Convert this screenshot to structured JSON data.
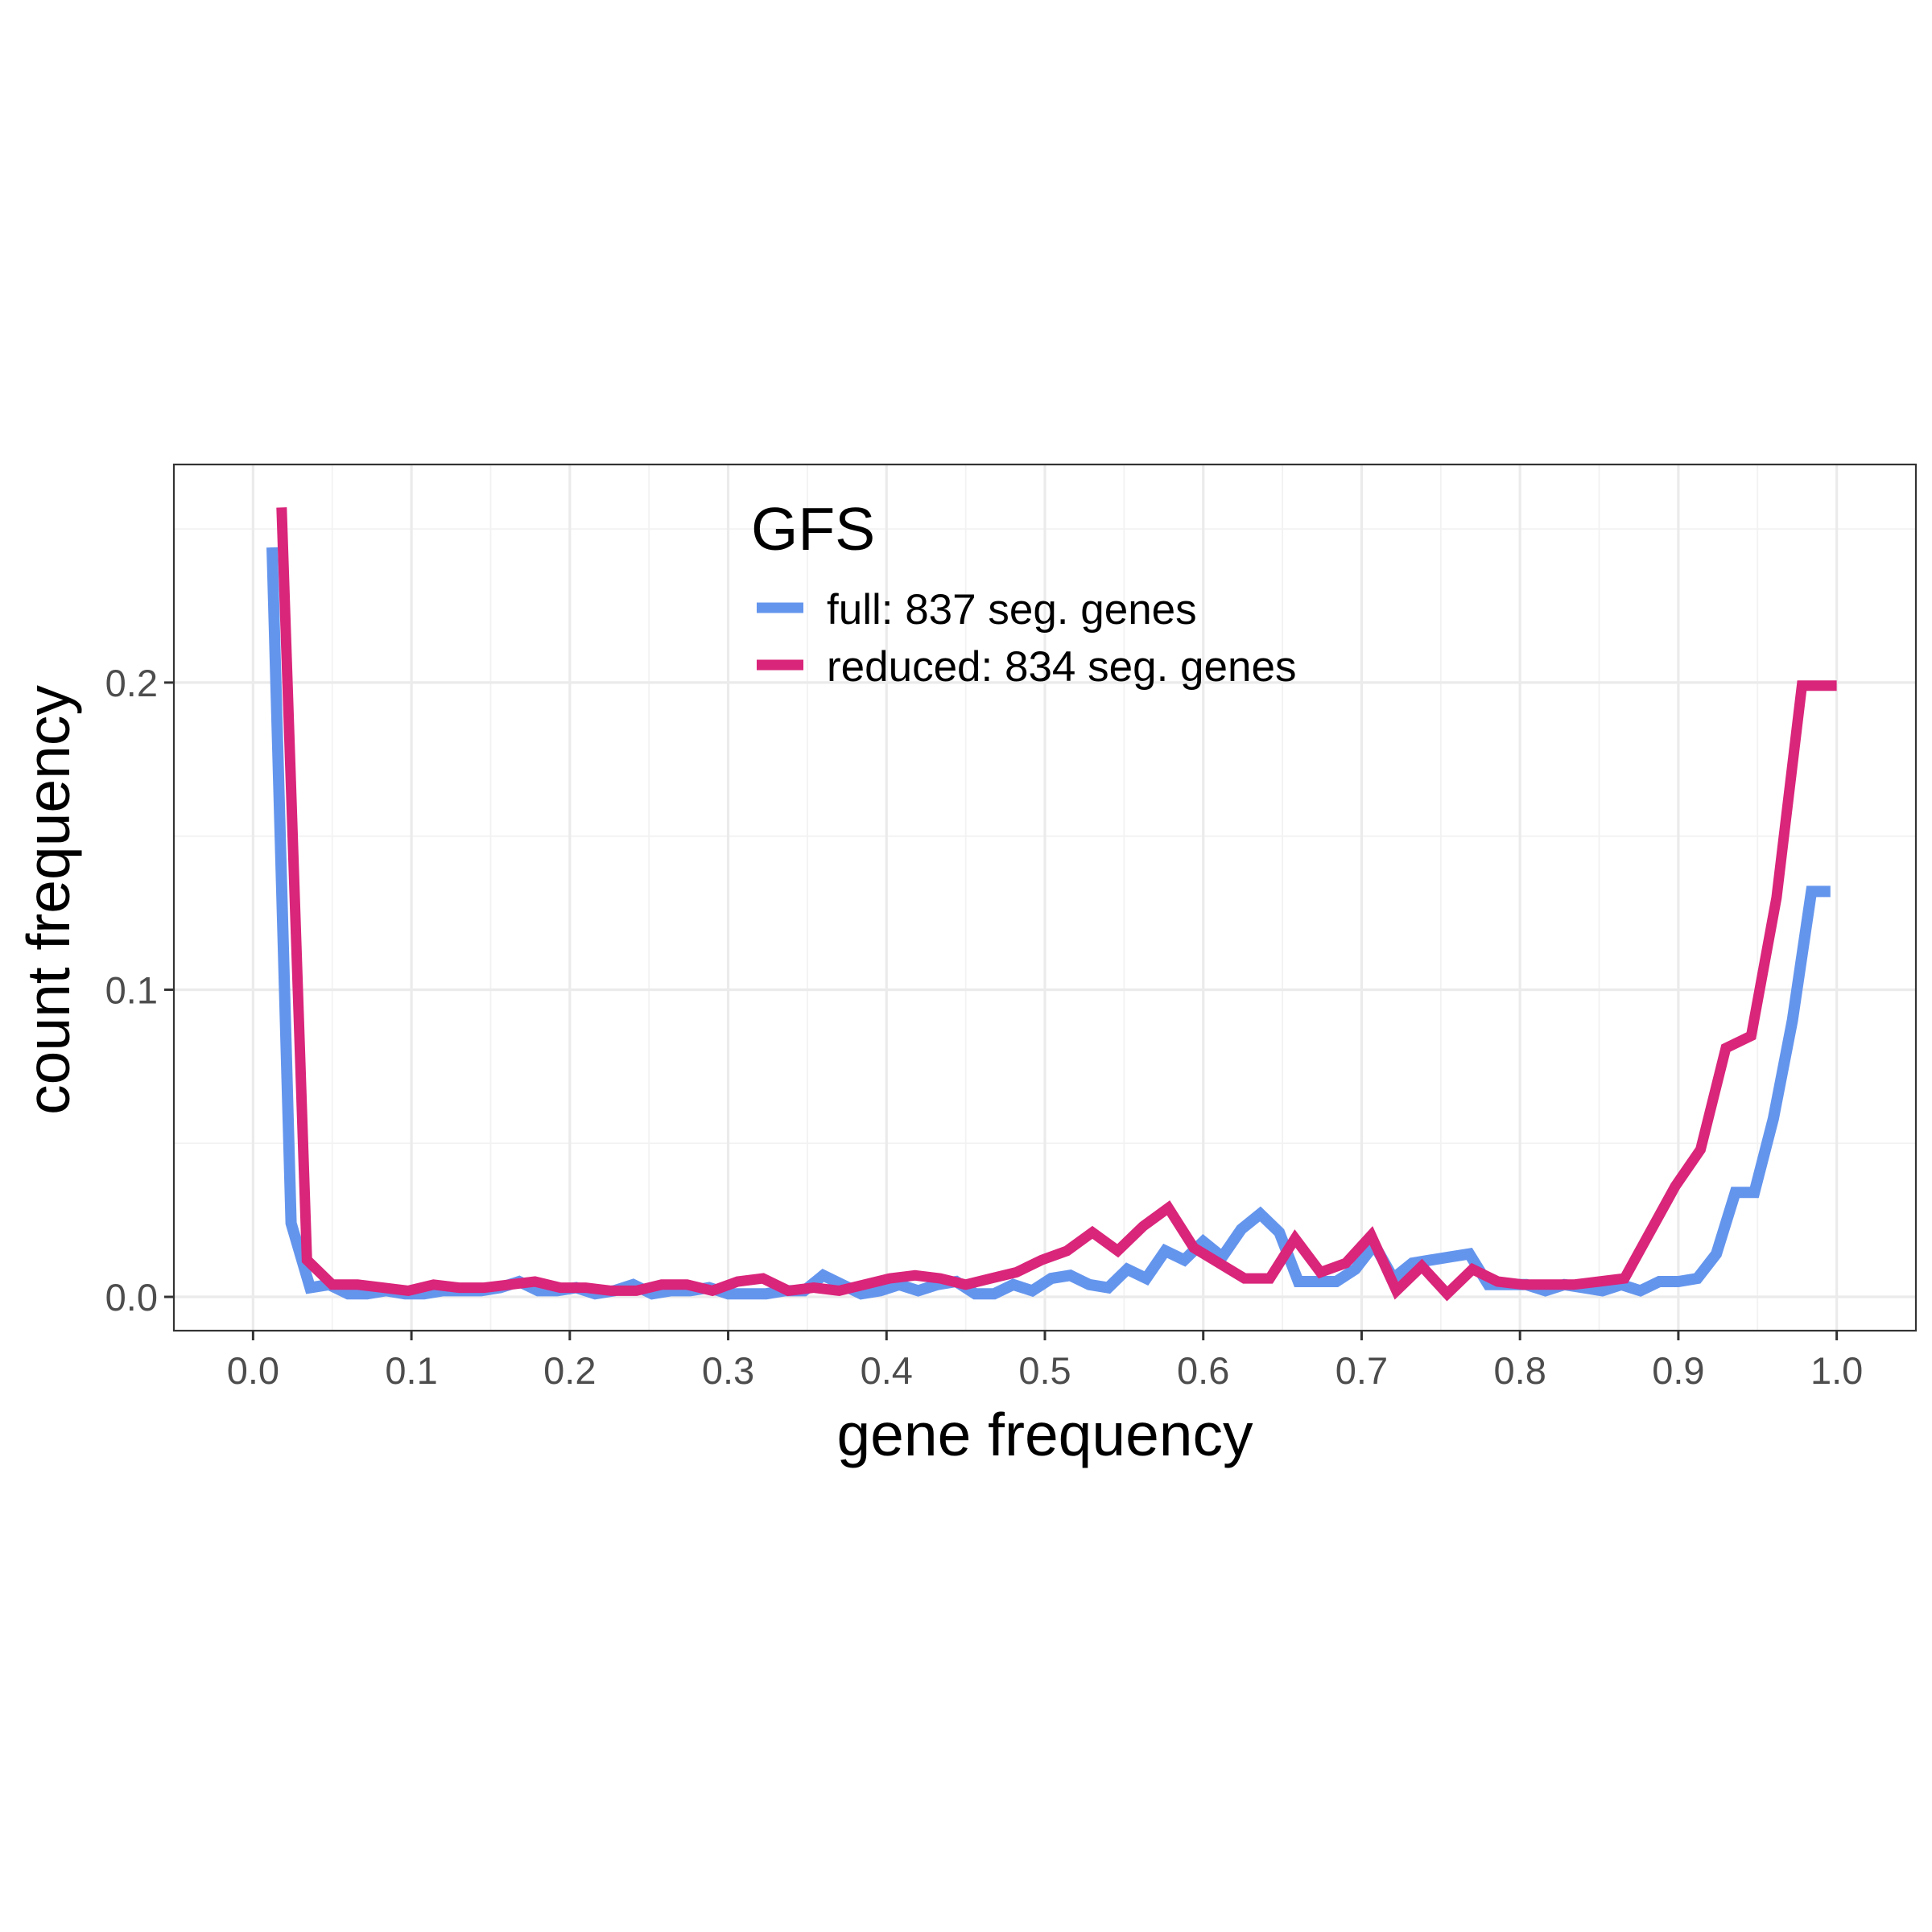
{
  "chart_data": {
    "type": "line",
    "title": "",
    "xlabel": "gene frequency",
    "ylabel": "count frequency",
    "xlim": [
      -0.05,
      1.05
    ],
    "ylim": [
      -0.011,
      0.271
    ],
    "x_ticks": [
      0.0,
      0.1,
      0.2,
      0.3,
      0.4,
      0.5,
      0.6,
      0.7,
      0.8,
      0.9,
      1.0
    ],
    "x_tick_labels": [
      "0.0",
      "0.1",
      "0.2",
      "0.3",
      "0.4",
      "0.5",
      "0.6",
      "0.7",
      "0.8",
      "0.9",
      "1.0"
    ],
    "y_ticks": [
      0.0,
      0.1,
      0.2
    ],
    "y_tick_labels": [
      "0.0",
      "0.1",
      "0.2"
    ],
    "grid": true,
    "legend": {
      "title": "GFS",
      "position": "top-center, inside plot",
      "entries": [
        "full: 837 seg. genes",
        "reduced: 834 seg. genes"
      ]
    },
    "series": [
      {
        "name": "full: 837 seg. genes",
        "color": "#6495ED",
        "x": [
          0.012,
          0.024,
          0.036,
          0.048,
          0.06,
          0.072,
          0.084,
          0.096,
          0.108,
          0.12,
          0.132,
          0.144,
          0.156,
          0.168,
          0.18,
          0.192,
          0.204,
          0.216,
          0.228,
          0.24,
          0.252,
          0.264,
          0.276,
          0.288,
          0.3,
          0.312,
          0.324,
          0.336,
          0.348,
          0.36,
          0.372,
          0.384,
          0.396,
          0.408,
          0.42,
          0.432,
          0.444,
          0.456,
          0.468,
          0.48,
          0.492,
          0.504,
          0.516,
          0.528,
          0.54,
          0.552,
          0.564,
          0.576,
          0.588,
          0.6,
          0.612,
          0.624,
          0.636,
          0.648,
          0.66,
          0.672,
          0.684,
          0.696,
          0.708,
          0.72,
          0.732,
          0.744,
          0.756,
          0.768,
          0.78,
          0.792,
          0.804,
          0.816,
          0.828,
          0.84,
          0.852,
          0.864,
          0.876,
          0.888,
          0.9,
          0.912,
          0.924,
          0.936,
          0.948,
          0.96,
          0.972,
          0.984,
          0.996
        ],
        "values": [
          0.244,
          0.024,
          0.003,
          0.004,
          0.001,
          0.001,
          0.002,
          0.001,
          0.001,
          0.002,
          0.002,
          0.002,
          0.003,
          0.005,
          0.002,
          0.002,
          0.003,
          0.001,
          0.002,
          0.004,
          0.001,
          0.002,
          0.002,
          0.003,
          0.001,
          0.001,
          0.001,
          0.002,
          0.002,
          0.007,
          0.004,
          0.001,
          0.002,
          0.004,
          0.002,
          0.004,
          0.005,
          0.001,
          0.001,
          0.004,
          0.002,
          0.006,
          0.007,
          0.004,
          0.003,
          0.009,
          0.006,
          0.015,
          0.012,
          0.018,
          0.013,
          0.022,
          0.027,
          0.021,
          0.005,
          0.005,
          0.005,
          0.009,
          0.017,
          0.006,
          0.011,
          0.012,
          0.013,
          0.014,
          0.004,
          0.004,
          0.004,
          0.002,
          0.004,
          0.003,
          0.002,
          0.004,
          0.002,
          0.005,
          0.005,
          0.006,
          0.014,
          0.034,
          0.034,
          0.058,
          0.09,
          0.132,
          0.132
        ]
      },
      {
        "name": "reduced: 834 seg. genes",
        "color": "#D9257A",
        "x": [
          0.018,
          0.034,
          0.05,
          0.066,
          0.082,
          0.098,
          0.114,
          0.13,
          0.146,
          0.162,
          0.178,
          0.194,
          0.21,
          0.226,
          0.242,
          0.258,
          0.274,
          0.29,
          0.306,
          0.322,
          0.338,
          0.354,
          0.37,
          0.386,
          0.402,
          0.418,
          0.434,
          0.45,
          0.466,
          0.482,
          0.498,
          0.514,
          0.53,
          0.546,
          0.562,
          0.578,
          0.594,
          0.61,
          0.626,
          0.642,
          0.658,
          0.674,
          0.69,
          0.706,
          0.722,
          0.738,
          0.754,
          0.77,
          0.786,
          0.802,
          0.818,
          0.834,
          0.85,
          0.866,
          0.882,
          0.898,
          0.914,
          0.93,
          0.946,
          0.962,
          0.978,
          0.986,
          0.994,
          1.0
        ],
        "values": [
          0.257,
          0.012,
          0.004,
          0.004,
          0.003,
          0.002,
          0.004,
          0.003,
          0.003,
          0.004,
          0.005,
          0.003,
          0.003,
          0.002,
          0.002,
          0.004,
          0.004,
          0.002,
          0.005,
          0.006,
          0.002,
          0.003,
          0.002,
          0.004,
          0.006,
          0.007,
          0.006,
          0.004,
          0.006,
          0.008,
          0.012,
          0.015,
          0.021,
          0.015,
          0.023,
          0.029,
          0.016,
          0.011,
          0.006,
          0.006,
          0.019,
          0.008,
          0.011,
          0.02,
          0.002,
          0.01,
          0.001,
          0.009,
          0.005,
          0.004,
          0.004,
          0.004,
          0.005,
          0.006,
          0.021,
          0.036,
          0.048,
          0.081,
          0.085,
          0.13,
          0.199,
          0.199,
          0.199,
          0.199
        ]
      }
    ]
  }
}
